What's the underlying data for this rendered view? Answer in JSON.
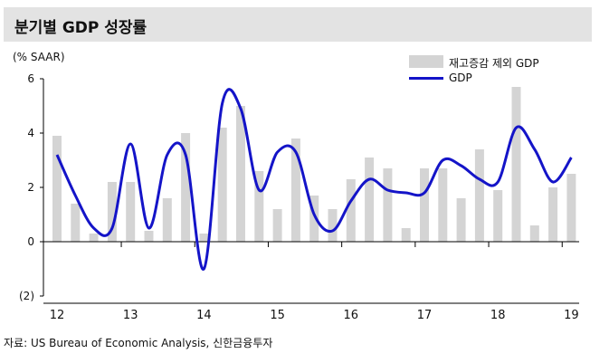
{
  "header": {
    "title": "분기별 GDP 성장률"
  },
  "footer": {
    "source": "자료: US Bureau of Economic Analysis, 신한금융투자"
  },
  "chart_data": {
    "type": "bar+line",
    "ylabel": "(% SAAR)",
    "ylim": [
      -2,
      6
    ],
    "yticks": [
      6,
      4,
      2,
      0,
      -2
    ],
    "ytick_labels": [
      "6",
      "4",
      "2",
      "0",
      "(2)"
    ],
    "year_labels": [
      "12",
      "13",
      "14",
      "15",
      "16",
      "17",
      "18",
      "19"
    ],
    "year_start_index": [
      0,
      4,
      8,
      12,
      16,
      20,
      24,
      28
    ],
    "legend_position": "top-right",
    "series": [
      {
        "name": "재고증감 제외 GDP",
        "kind": "bar",
        "color": "#d4d4d4",
        "values": [
          3.9,
          1.4,
          0.3,
          2.2,
          2.2,
          0.4,
          1.6,
          4.0,
          0.3,
          4.2,
          5.0,
          2.6,
          1.2,
          3.8,
          1.7,
          1.2,
          2.3,
          3.1,
          2.7,
          0.5,
          2.7,
          2.7,
          1.6,
          3.4,
          1.9,
          5.7,
          0.6,
          2.0,
          2.5
        ]
      },
      {
        "name": "GDP",
        "kind": "line",
        "color": "#1414c8",
        "values": [
          3.2,
          1.7,
          0.5,
          0.5,
          3.6,
          0.5,
          3.2,
          3.2,
          -1.0,
          5.1,
          4.9,
          1.9,
          3.3,
          3.3,
          1.0,
          0.4,
          1.5,
          2.3,
          1.9,
          1.8,
          1.8,
          3.0,
          2.8,
          2.3,
          2.2,
          4.2,
          3.4,
          2.2,
          3.1
        ]
      }
    ]
  }
}
